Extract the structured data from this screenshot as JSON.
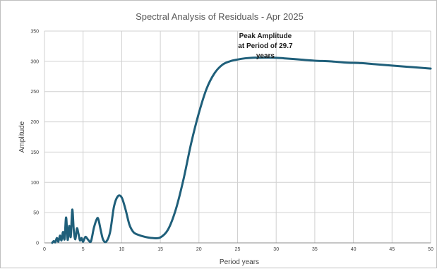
{
  "chart_data": {
    "type": "line",
    "title": "Spectral Analysis of Residuals - Apr 2025",
    "xlabel": "Period years",
    "ylabel": "Amplitude",
    "xlim": [
      0,
      50
    ],
    "ylim": [
      0,
      350
    ],
    "x_ticks": [
      "0",
      "5",
      "10",
      "15",
      "20",
      "25",
      "30",
      "35",
      "40",
      "45",
      "50"
    ],
    "y_ticks": [
      "0",
      "50",
      "100",
      "150",
      "200",
      "250",
      "300",
      "350"
    ],
    "grid": true,
    "legend": "none",
    "annotation": {
      "lines": [
        "Peak Amplitude",
        "at Period of 29.7",
        "years"
      ],
      "x": 29.7,
      "y": 306
    },
    "series": [
      {
        "color": "#1f5f7a",
        "x": [
          1.0,
          1.2,
          1.4,
          1.6,
          1.8,
          2.0,
          2.2,
          2.4,
          2.6,
          2.8,
          3.0,
          3.2,
          3.4,
          3.6,
          3.8,
          4.0,
          4.2,
          4.4,
          4.6,
          4.8,
          5.0,
          5.3,
          5.6,
          6.0,
          6.4,
          6.8,
          7.0,
          7.3,
          7.6,
          8.0,
          8.5,
          9.0,
          9.5,
          10.0,
          10.5,
          11.0,
          11.5,
          12.0,
          13.0,
          14.0,
          15.0,
          16.0,
          17.0,
          18.0,
          19.0,
          20.0,
          21.0,
          22.0,
          23.0,
          24.0,
          25.0,
          26.0,
          27.0,
          28.0,
          29.7,
          31.0,
          33.0,
          35.0,
          37.0,
          39.0,
          41.0,
          43.0,
          45.0,
          47.0,
          49.0,
          50.0
        ],
        "y": [
          0,
          3,
          1,
          8,
          2,
          12,
          4,
          18,
          6,
          42,
          5,
          28,
          10,
          55,
          20,
          6,
          24,
          15,
          4,
          8,
          2,
          10,
          6,
          2,
          25,
          40,
          38,
          20,
          5,
          2,
          18,
          60,
          77,
          75,
          55,
          30,
          18,
          14,
          10,
          8,
          9,
          22,
          55,
          105,
          165,
          215,
          255,
          280,
          294,
          300,
          303,
          305,
          306,
          306,
          306,
          305,
          303,
          301,
          300,
          298,
          297,
          295,
          293,
          291,
          289,
          288
        ]
      }
    ]
  }
}
